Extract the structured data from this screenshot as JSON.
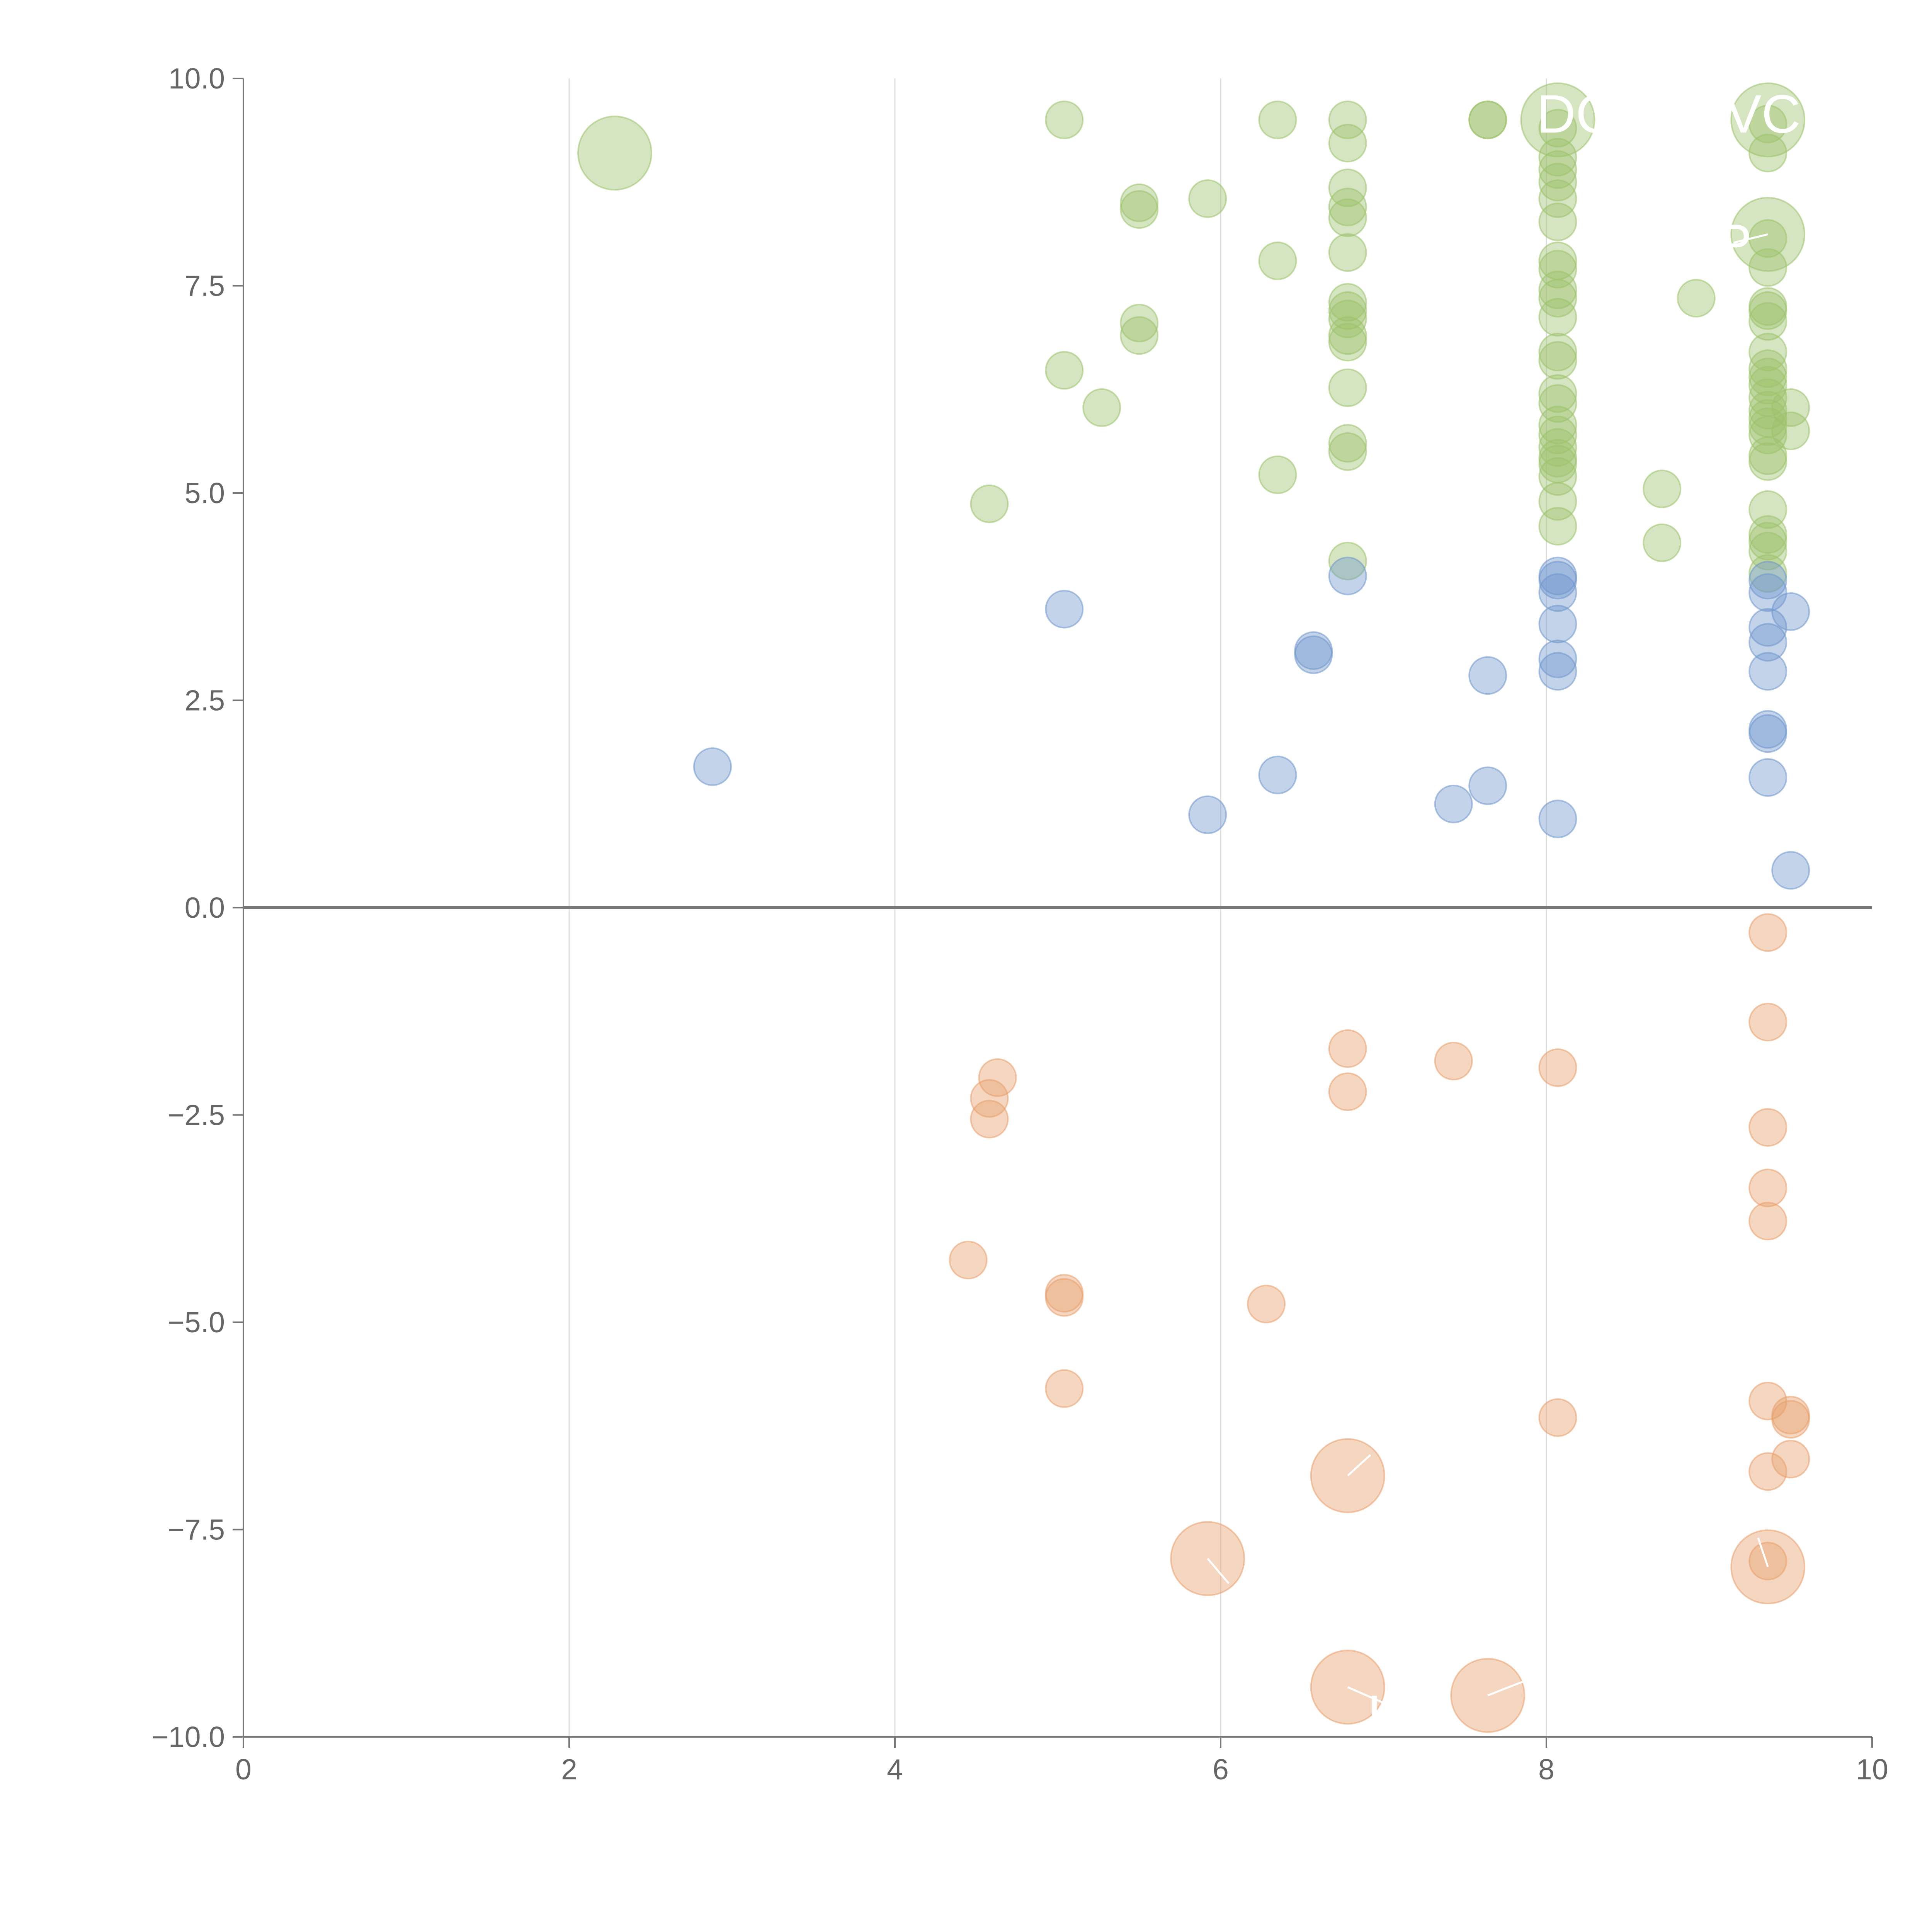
{
  "chart_data": {
    "type": "scatter",
    "title": "",
    "xlabel": "",
    "ylabel": "",
    "xlim": [
      0,
      10
    ],
    "ylim": [
      -10,
      10
    ],
    "xticks": [
      0,
      2,
      4,
      6,
      8,
      10
    ],
    "yticks": [
      -10,
      -7.5,
      -5,
      -2.5,
      0,
      2.5,
      5,
      7.5,
      10
    ],
    "xtick_labels": [
      "0",
      "2",
      "4",
      "6",
      "8",
      "10"
    ],
    "ytick_labels": [
      "−10.0",
      "−7.5",
      "−5.0",
      "−2.5",
      "0.0",
      "2.5",
      "5.0",
      "7.5",
      "10.0"
    ],
    "grid": "vertical",
    "zero_line": true,
    "series": [
      {
        "name": "green",
        "color": "#9dc26b",
        "points": [
          {
            "x": 2.28,
            "y": 9.1,
            "size": 3
          },
          {
            "x": 5.04,
            "y": 9.5,
            "size": 1
          },
          {
            "x": 6.35,
            "y": 9.5,
            "size": 1
          },
          {
            "x": 6.78,
            "y": 9.5,
            "size": 1
          },
          {
            "x": 7.64,
            "y": 9.5,
            "size": 1
          },
          {
            "x": 7.64,
            "y": 9.5,
            "size": 1
          },
          {
            "x": 6.78,
            "y": 9.22,
            "size": 1
          },
          {
            "x": 6.78,
            "y": 8.68,
            "size": 1
          },
          {
            "x": 6.78,
            "y": 8.45,
            "size": 1
          },
          {
            "x": 6.78,
            "y": 8.32,
            "size": 1
          },
          {
            "x": 5.5,
            "y": 8.5,
            "size": 1
          },
          {
            "x": 5.5,
            "y": 8.42,
            "size": 1
          },
          {
            "x": 5.92,
            "y": 8.55,
            "size": 1
          },
          {
            "x": 6.35,
            "y": 7.8,
            "size": 1
          },
          {
            "x": 6.78,
            "y": 7.9,
            "size": 1
          },
          {
            "x": 6.78,
            "y": 7.3,
            "size": 1
          },
          {
            "x": 6.78,
            "y": 7.2,
            "size": 1
          },
          {
            "x": 6.78,
            "y": 7.1,
            "size": 1
          },
          {
            "x": 6.78,
            "y": 6.9,
            "size": 1
          },
          {
            "x": 6.78,
            "y": 6.82,
            "size": 1
          },
          {
            "x": 6.78,
            "y": 6.27,
            "size": 1
          },
          {
            "x": 6.78,
            "y": 5.6,
            "size": 1
          },
          {
            "x": 6.78,
            "y": 5.5,
            "size": 1
          },
          {
            "x": 6.78,
            "y": 4.18,
            "size": 1
          },
          {
            "x": 5.5,
            "y": 7.05,
            "size": 1
          },
          {
            "x": 5.5,
            "y": 6.9,
            "size": 1
          },
          {
            "x": 5.04,
            "y": 6.48,
            "size": 1
          },
          {
            "x": 5.27,
            "y": 6.03,
            "size": 1
          },
          {
            "x": 6.35,
            "y": 5.22,
            "size": 1
          },
          {
            "x": 4.58,
            "y": 4.87,
            "size": 1
          },
          {
            "x": 8.07,
            "y": 9.5,
            "size": 3
          },
          {
            "x": 8.07,
            "y": 9.4,
            "size": 1
          },
          {
            "x": 8.07,
            "y": 9.05,
            "size": 1
          },
          {
            "x": 8.07,
            "y": 8.9,
            "size": 1
          },
          {
            "x": 8.07,
            "y": 8.75,
            "size": 1
          },
          {
            "x": 8.07,
            "y": 8.55,
            "size": 1
          },
          {
            "x": 8.07,
            "y": 8.27,
            "size": 1
          },
          {
            "x": 8.07,
            "y": 7.8,
            "size": 1
          },
          {
            "x": 8.07,
            "y": 7.7,
            "size": 1
          },
          {
            "x": 8.07,
            "y": 7.45,
            "size": 1
          },
          {
            "x": 8.07,
            "y": 7.35,
            "size": 1
          },
          {
            "x": 8.07,
            "y": 7.12,
            "size": 1
          },
          {
            "x": 8.07,
            "y": 6.7,
            "size": 1
          },
          {
            "x": 8.07,
            "y": 6.6,
            "size": 1
          },
          {
            "x": 8.07,
            "y": 6.2,
            "size": 1
          },
          {
            "x": 8.07,
            "y": 6.08,
            "size": 1
          },
          {
            "x": 8.07,
            "y": 5.82,
            "size": 1
          },
          {
            "x": 8.07,
            "y": 5.7,
            "size": 1
          },
          {
            "x": 8.07,
            "y": 5.55,
            "size": 1
          },
          {
            "x": 8.07,
            "y": 5.42,
            "size": 1
          },
          {
            "x": 8.07,
            "y": 5.35,
            "size": 1
          },
          {
            "x": 8.07,
            "y": 5.2,
            "size": 1
          },
          {
            "x": 8.07,
            "y": 4.9,
            "size": 1
          },
          {
            "x": 8.07,
            "y": 4.6,
            "size": 1
          },
          {
            "x": 8.71,
            "y": 5.05,
            "size": 1
          },
          {
            "x": 8.71,
            "y": 4.4,
            "size": 1
          },
          {
            "x": 8.92,
            "y": 7.35,
            "size": 1
          },
          {
            "x": 9.36,
            "y": 9.5,
            "size": 3
          },
          {
            "x": 9.36,
            "y": 9.45,
            "size": 1
          },
          {
            "x": 9.36,
            "y": 9.1,
            "size": 1
          },
          {
            "x": 9.36,
            "y": 8.12,
            "size": 3
          },
          {
            "x": 9.36,
            "y": 8.07,
            "size": 1
          },
          {
            "x": 9.36,
            "y": 7.72,
            "size": 1
          },
          {
            "x": 9.36,
            "y": 7.25,
            "size": 1
          },
          {
            "x": 9.36,
            "y": 7.2,
            "size": 1
          },
          {
            "x": 9.36,
            "y": 7.07,
            "size": 1
          },
          {
            "x": 9.36,
            "y": 6.7,
            "size": 1
          },
          {
            "x": 9.36,
            "y": 6.5,
            "size": 1
          },
          {
            "x": 9.36,
            "y": 6.4,
            "size": 1
          },
          {
            "x": 9.36,
            "y": 6.3,
            "size": 1
          },
          {
            "x": 9.36,
            "y": 6.15,
            "size": 1
          },
          {
            "x": 9.36,
            "y": 6.0,
            "size": 1
          },
          {
            "x": 9.36,
            "y": 5.9,
            "size": 1
          },
          {
            "x": 9.36,
            "y": 5.8,
            "size": 1
          },
          {
            "x": 9.36,
            "y": 5.7,
            "size": 1
          },
          {
            "x": 9.36,
            "y": 5.45,
            "size": 1
          },
          {
            "x": 9.36,
            "y": 5.38,
            "size": 1
          },
          {
            "x": 9.5,
            "y": 6.03,
            "size": 1
          },
          {
            "x": 9.5,
            "y": 5.75,
            "size": 1
          },
          {
            "x": 9.36,
            "y": 4.8,
            "size": 1
          },
          {
            "x": 9.36,
            "y": 4.5,
            "size": 1
          },
          {
            "x": 9.36,
            "y": 4.42,
            "size": 1
          },
          {
            "x": 9.36,
            "y": 4.3,
            "size": 1
          },
          {
            "x": 9.36,
            "y": 4.03,
            "size": 1
          }
        ]
      },
      {
        "name": "blue",
        "color": "#6f97cc",
        "points": [
          {
            "x": 2.88,
            "y": 1.7,
            "size": 1
          },
          {
            "x": 5.04,
            "y": 3.6,
            "size": 1
          },
          {
            "x": 5.92,
            "y": 1.12,
            "size": 1
          },
          {
            "x": 6.35,
            "y": 1.6,
            "size": 1
          },
          {
            "x": 6.57,
            "y": 3.1,
            "size": 1
          },
          {
            "x": 6.57,
            "y": 3.05,
            "size": 1
          },
          {
            "x": 6.78,
            "y": 4.0,
            "size": 1
          },
          {
            "x": 7.43,
            "y": 1.25,
            "size": 1
          },
          {
            "x": 7.64,
            "y": 1.47,
            "size": 1
          },
          {
            "x": 7.64,
            "y": 2.8,
            "size": 1
          },
          {
            "x": 8.07,
            "y": 4.0,
            "size": 1
          },
          {
            "x": 8.07,
            "y": 3.95,
            "size": 1
          },
          {
            "x": 8.07,
            "y": 3.8,
            "size": 1
          },
          {
            "x": 8.07,
            "y": 3.42,
            "size": 1
          },
          {
            "x": 8.07,
            "y": 3.0,
            "size": 1
          },
          {
            "x": 8.07,
            "y": 2.85,
            "size": 1
          },
          {
            "x": 8.07,
            "y": 1.07,
            "size": 1
          },
          {
            "x": 9.36,
            "y": 3.95,
            "size": 1
          },
          {
            "x": 9.36,
            "y": 3.8,
            "size": 1
          },
          {
            "x": 9.36,
            "y": 3.38,
            "size": 1
          },
          {
            "x": 9.36,
            "y": 3.2,
            "size": 1
          },
          {
            "x": 9.36,
            "y": 2.85,
            "size": 1
          },
          {
            "x": 9.36,
            "y": 2.15,
            "size": 1
          },
          {
            "x": 9.36,
            "y": 2.1,
            "size": 1
          },
          {
            "x": 9.36,
            "y": 1.57,
            "size": 1
          },
          {
            "x": 9.5,
            "y": 3.57,
            "size": 1
          },
          {
            "x": 9.5,
            "y": 0.45,
            "size": 1
          }
        ]
      },
      {
        "name": "orange",
        "color": "#e89f6b",
        "points": [
          {
            "x": 4.45,
            "y": -4.25,
            "size": 1
          },
          {
            "x": 4.58,
            "y": -2.3,
            "size": 1
          },
          {
            "x": 4.58,
            "y": -2.55,
            "size": 1
          },
          {
            "x": 4.63,
            "y": -2.05,
            "size": 1
          },
          {
            "x": 5.04,
            "y": -4.65,
            "size": 1
          },
          {
            "x": 5.04,
            "y": -4.7,
            "size": 1
          },
          {
            "x": 5.04,
            "y": -5.8,
            "size": 1
          },
          {
            "x": 5.92,
            "y": -7.85,
            "size": 3
          },
          {
            "x": 6.28,
            "y": -4.78,
            "size": 1
          },
          {
            "x": 6.78,
            "y": -1.7,
            "size": 1
          },
          {
            "x": 6.78,
            "y": -2.22,
            "size": 1
          },
          {
            "x": 6.78,
            "y": -6.85,
            "size": 3
          },
          {
            "x": 6.78,
            "y": -9.4,
            "size": 3
          },
          {
            "x": 7.43,
            "y": -1.85,
            "size": 1
          },
          {
            "x": 7.64,
            "y": -9.5,
            "size": 3
          },
          {
            "x": 8.07,
            "y": -1.93,
            "size": 1
          },
          {
            "x": 8.07,
            "y": -6.15,
            "size": 1
          },
          {
            "x": 9.36,
            "y": -0.3,
            "size": 1
          },
          {
            "x": 9.36,
            "y": -1.38,
            "size": 1
          },
          {
            "x": 9.36,
            "y": -2.65,
            "size": 1
          },
          {
            "x": 9.36,
            "y": -3.38,
            "size": 1
          },
          {
            "x": 9.36,
            "y": -3.78,
            "size": 1
          },
          {
            "x": 9.36,
            "y": -5.95,
            "size": 1
          },
          {
            "x": 9.36,
            "y": -6.8,
            "size": 1
          },
          {
            "x": 9.36,
            "y": -7.95,
            "size": 3
          },
          {
            "x": 9.36,
            "y": -7.88,
            "size": 1
          },
          {
            "x": 9.5,
            "y": -6.12,
            "size": 1
          },
          {
            "x": 9.5,
            "y": -6.17,
            "size": 1
          },
          {
            "x": 9.5,
            "y": -6.65,
            "size": 1
          }
        ]
      }
    ],
    "annotations": [
      {
        "text": "DC",
        "x": 8.07,
        "y": 9.5,
        "lx": 8.18,
        "ly": 9.58,
        "line": false
      },
      {
        "text": "VC",
        "x": 9.36,
        "y": 9.5,
        "lx": 9.33,
        "ly": 9.58,
        "line": false
      },
      {
        "text": "P",
        "x": 9.36,
        "y": 8.12,
        "lx": 9.15,
        "ly": 8.02,
        "line": true
      },
      {
        "text": "HO",
        "x": 6.78,
        "y": -9.4,
        "lx": 7.15,
        "ly": -9.72,
        "line": true
      },
      {
        "text": "",
        "x": 6.78,
        "y": -6.85,
        "lx": 6.92,
        "ly": -6.6,
        "line": true
      },
      {
        "text": "",
        "x": 5.92,
        "y": -7.85,
        "lx": 6.05,
        "ly": -8.15,
        "line": true
      },
      {
        "text": "",
        "x": 7.64,
        "y": -9.5,
        "lx": 7.9,
        "ly": -9.3,
        "line": true
      },
      {
        "text": "",
        "x": 9.36,
        "y": -7.95,
        "lx": 9.3,
        "ly": -7.6,
        "line": true
      }
    ]
  }
}
